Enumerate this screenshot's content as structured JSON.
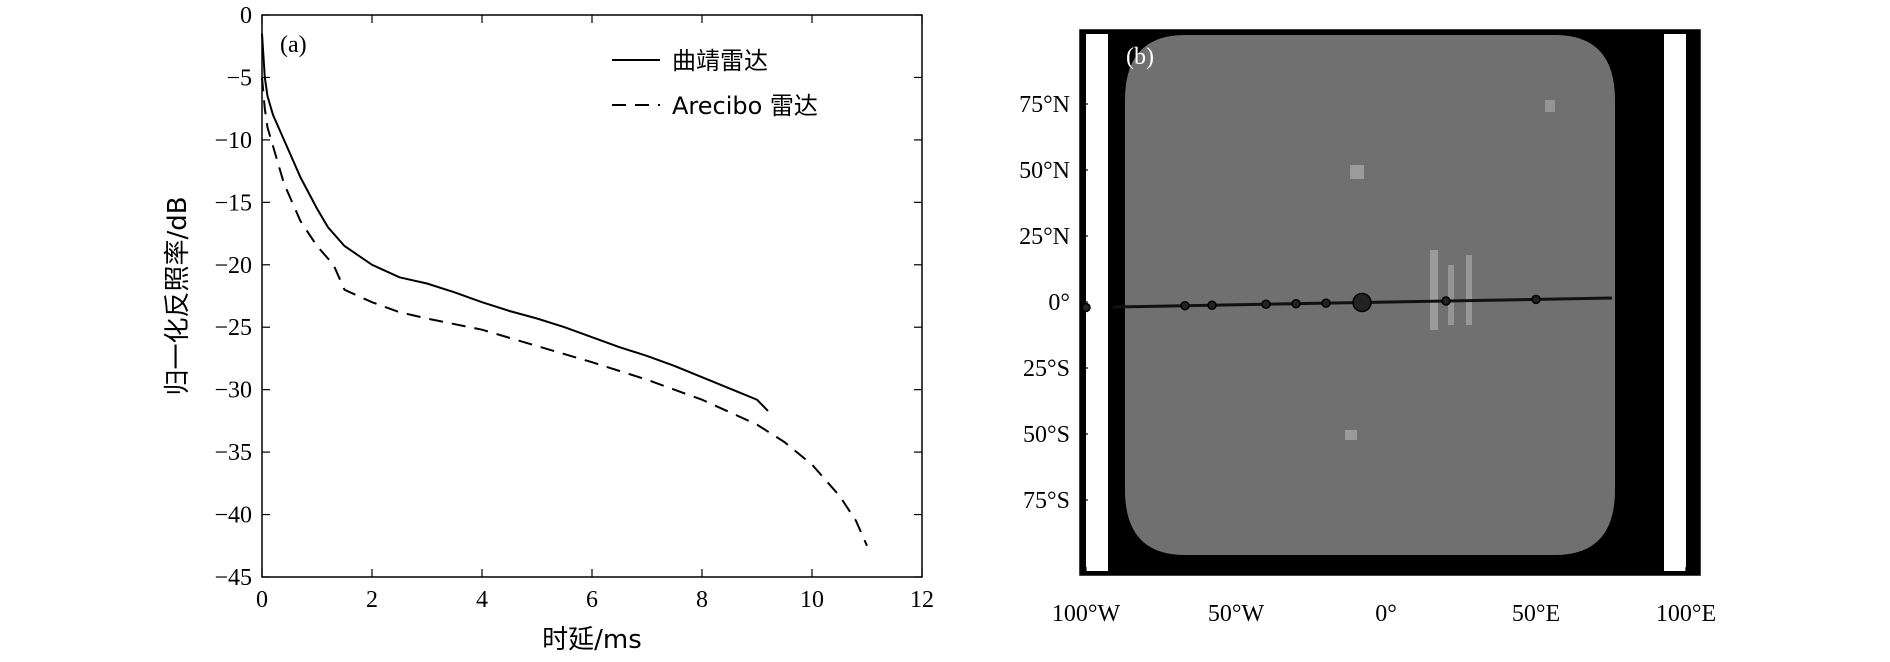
{
  "colors": {
    "background": "#ffffff",
    "axis": "#000000",
    "map_background": "#000000",
    "map_disk": "#707070"
  },
  "chart_data": [
    {
      "type": "line",
      "panel_label": "(a)",
      "xlabel": "时延/ms",
      "ylabel": "归一化反照率/dB",
      "xlim": [
        0,
        12
      ],
      "ylim": [
        -45,
        0
      ],
      "x_ticks": [
        0,
        2,
        4,
        6,
        8,
        10,
        12
      ],
      "y_ticks": [
        0,
        -5,
        -10,
        -15,
        -20,
        -25,
        -30,
        -35,
        -40,
        -45
      ],
      "x_tick_labels": [
        "0",
        "2",
        "4",
        "6",
        "8",
        "10",
        "12"
      ],
      "y_tick_labels": [
        "0",
        "−5",
        "−10",
        "−15",
        "−20",
        "−25",
        "−30",
        "−35",
        "−40",
        "−45"
      ],
      "legend_position": "top-right",
      "series": [
        {
          "name": "曲靖雷达",
          "style": "solid",
          "x": [
            0,
            0.05,
            0.1,
            0.2,
            0.3,
            0.4,
            0.5,
            0.7,
            1.0,
            1.2,
            1.5,
            2.0,
            2.5,
            2.7,
            3.0,
            3.5,
            4.0,
            4.5,
            5.0,
            5.5,
            6.0,
            6.5,
            7.0,
            7.5,
            8.0,
            8.5,
            9.0,
            9.2
          ],
          "values": [
            -1.5,
            -5.0,
            -6.5,
            -8.0,
            -9.0,
            -10.0,
            -11.0,
            -13.0,
            -15.5,
            -17.0,
            -18.5,
            -20.0,
            -21.0,
            -21.2,
            -21.5,
            -22.2,
            -23.0,
            -23.7,
            -24.3,
            -25.0,
            -25.8,
            -26.6,
            -27.3,
            -28.1,
            -29.0,
            -29.9,
            -30.8,
            -31.7
          ]
        },
        {
          "name": "Arecibo 雷达",
          "style": "dashed",
          "x": [
            0,
            0.05,
            0.1,
            0.2,
            0.3,
            0.4,
            0.5,
            0.7,
            1.0,
            1.3,
            1.4,
            1.5,
            2.0,
            2.5,
            3.0,
            4.0,
            5.0,
            6.0,
            7.0,
            8.0,
            8.5,
            9.0,
            9.5,
            10.0,
            10.5,
            10.8,
            11.0
          ],
          "values": [
            -5.0,
            -7.5,
            -9.0,
            -10.5,
            -12.0,
            -13.5,
            -14.5,
            -16.5,
            -18.5,
            -20.0,
            -21.0,
            -22.0,
            -23.0,
            -23.8,
            -24.3,
            -25.2,
            -26.5,
            -27.8,
            -29.2,
            -30.8,
            -31.8,
            -32.8,
            -34.2,
            -36.0,
            -38.5,
            -40.5,
            -42.5
          ]
        }
      ]
    },
    {
      "type": "heatmap",
      "panel_label": "(b)",
      "xlim": [
        -100,
        100
      ],
      "ylim": [
        -90,
        90
      ],
      "x_ticks": [
        -100,
        -50,
        0,
        50,
        100
      ],
      "y_ticks": [
        75,
        50,
        25,
        0,
        -25,
        -50,
        -75
      ],
      "x_tick_labels": [
        "100°W",
        "50°W",
        "0°",
        "50°E",
        "100°E"
      ],
      "y_tick_labels": [
        "75°N",
        "50°N",
        "25°N",
        "0°",
        "25°S",
        "50°S",
        "75°S"
      ],
      "equator_markers_longitude": [
        -100,
        -67,
        -58,
        -40,
        -30,
        -20,
        -8,
        20,
        50
      ]
    }
  ]
}
